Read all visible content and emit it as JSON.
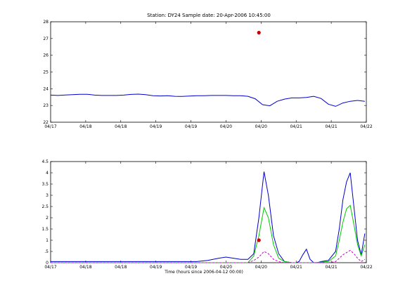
{
  "figure": {
    "title": "Station: DY24  Sample date: 20-Apr-2006 10:45:00"
  },
  "chart_data": [
    {
      "type": "line",
      "panel": "top",
      "xlabel": "",
      "ylabel": "",
      "xlim": [
        0,
        432
      ],
      "ylim": [
        22,
        28
      ],
      "yticks": [
        22,
        23,
        24,
        25,
        26,
        27,
        28
      ],
      "xticks": [
        0,
        48,
        96,
        144,
        192,
        240,
        288,
        336,
        384,
        432
      ],
      "xticklabels": [
        "04/17",
        "04/18",
        "04/18",
        "04/19",
        "04/19",
        "04/20",
        "04/20",
        "04/21",
        "04/21",
        "04/22"
      ],
      "series": [
        {
          "color": "#0000cc",
          "style": "solid",
          "x": [
            0,
            10,
            20,
            30,
            40,
            50,
            60,
            70,
            80,
            90,
            100,
            110,
            120,
            130,
            140,
            150,
            160,
            170,
            180,
            190,
            200,
            210,
            220,
            230,
            240,
            250,
            260,
            270,
            280,
            290,
            300,
            310,
            320,
            330,
            340,
            350,
            360,
            370,
            380,
            390,
            400,
            410,
            420,
            430
          ],
          "y": [
            23.62,
            23.6,
            23.63,
            23.65,
            23.67,
            23.67,
            23.62,
            23.6,
            23.6,
            23.6,
            23.62,
            23.66,
            23.68,
            23.65,
            23.58,
            23.57,
            23.58,
            23.55,
            23.54,
            23.56,
            23.58,
            23.58,
            23.6,
            23.6,
            23.6,
            23.58,
            23.58,
            23.55,
            23.4,
            23.05,
            22.98,
            23.25,
            23.38,
            23.45,
            23.45,
            23.48,
            23.55,
            23.42,
            23.08,
            22.95,
            23.15,
            23.25,
            23.3,
            23.25
          ]
        },
        {
          "color": "#cc0000",
          "style": "marker",
          "x": [
            285
          ],
          "y": [
            27.35
          ]
        }
      ]
    },
    {
      "type": "line",
      "panel": "bottom",
      "xlabel": "Time (hours since 2006-04-12 00:00)",
      "ylabel": "",
      "xlim": [
        0,
        432
      ],
      "ylim": [
        0,
        4.5
      ],
      "yticks": [
        0,
        0.5,
        1,
        1.5,
        2,
        2.5,
        3,
        3.5,
        4,
        4.5
      ],
      "yticklabels": [
        "0",
        ".5",
        "1",
        "1.5",
        "2",
        "2.5",
        "3",
        "3.5",
        "4",
        "4.5"
      ],
      "xticks": [
        0,
        48,
        96,
        144,
        192,
        240,
        288,
        336,
        384,
        432
      ],
      "xticklabels": [
        "04/17",
        "04/18",
        "04/18",
        "04/19",
        "04/19",
        "04/20",
        "04/20",
        "04/21",
        "04/21",
        "04/22"
      ],
      "series": [
        {
          "color": "#0000cc",
          "style": "solid",
          "x": [
            0,
            20,
            40,
            60,
            80,
            100,
            120,
            140,
            160,
            180,
            200,
            215,
            230,
            240,
            250,
            260,
            270,
            278,
            285,
            292,
            298,
            305,
            312,
            320,
            330,
            336,
            340,
            345,
            350,
            355,
            360,
            365,
            370,
            380,
            390,
            395,
            400,
            405,
            410,
            415,
            420,
            425,
            430
          ],
          "y": [
            0.05,
            0.05,
            0.05,
            0.05,
            0.05,
            0.05,
            0.05,
            0.05,
            0.05,
            0.05,
            0.05,
            0.1,
            0.2,
            0.25,
            0.2,
            0.15,
            0.15,
            0.4,
            2.0,
            4.05,
            3.0,
            1.2,
            0.4,
            0.05,
            0.0,
            0.0,
            0.05,
            0.35,
            0.6,
            0.15,
            0.0,
            0.0,
            0.05,
            0.1,
            0.5,
            1.5,
            2.8,
            3.6,
            4.0,
            2.5,
            1.0,
            0.35,
            1.3
          ]
        },
        {
          "color": "#00cc00",
          "style": "solid",
          "x": [
            0,
            100,
            200,
            240,
            260,
            270,
            278,
            285,
            292,
            298,
            305,
            312,
            320,
            330,
            340,
            345,
            350,
            355,
            360,
            380,
            390,
            395,
            400,
            405,
            410,
            415,
            420,
            425,
            430
          ],
          "y": [
            0.0,
            0.0,
            0.0,
            0.0,
            0.0,
            0.0,
            0.3,
            1.2,
            2.45,
            2.0,
            0.8,
            0.2,
            0.05,
            0.0,
            0.0,
            0.0,
            0.0,
            0.0,
            0.0,
            0.05,
            0.3,
            1.0,
            1.8,
            2.4,
            2.55,
            1.7,
            0.8,
            0.3,
            0.8
          ]
        },
        {
          "color": "#cc00cc",
          "style": "dashed",
          "x": [
            0,
            100,
            200,
            240,
            270,
            278,
            285,
            292,
            298,
            305,
            312,
            320,
            340,
            380,
            390,
            395,
            400,
            405,
            410,
            415,
            420,
            425,
            430
          ],
          "y": [
            0.0,
            0.0,
            0.0,
            0.0,
            0.0,
            0.1,
            0.25,
            0.5,
            0.4,
            0.15,
            0.05,
            0.0,
            0.0,
            0.0,
            0.05,
            0.2,
            0.35,
            0.45,
            0.55,
            0.4,
            0.2,
            0.05,
            0.15
          ]
        },
        {
          "color": "#cc0000",
          "style": "marker",
          "x": [
            285
          ],
          "y": [
            1.0
          ]
        }
      ]
    }
  ]
}
